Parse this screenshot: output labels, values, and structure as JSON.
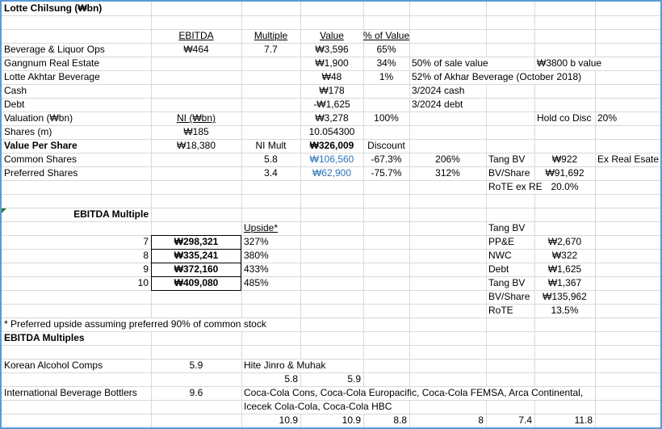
{
  "sheet": {
    "rows": [
      [
        "Lotte Chilsung  (₩bn)"
      ],
      [],
      [
        null,
        "EBITDA",
        "Multiple",
        "Value",
        "% of Value"
      ],
      [
        "Beverage & Liquor Ops",
        "₩464",
        "7.7",
        "₩3,596",
        "65%"
      ],
      [
        "Gangnum Real Estate",
        null,
        null,
        "₩1,900",
        "34%",
        "50% of sale value",
        null,
        "₩3800 b value"
      ],
      [
        "Lotte Akhtar Beverage",
        null,
        null,
        "₩48",
        "1%",
        "52% of Akhar Beverage (October 2018)"
      ],
      [
        "Cash",
        null,
        null,
        "₩178",
        null,
        "3/2024 cash"
      ],
      [
        "Debt",
        null,
        null,
        "-₩1,625",
        null,
        "3/2024 debt"
      ],
      [
        "Valuation (₩bn)",
        "NI (₩bn)",
        null,
        "₩3,278",
        "100%",
        null,
        null,
        "Hold co Disc",
        "20%"
      ],
      [
        "Shares (m)",
        "₩185",
        null,
        "10.054300"
      ],
      [
        "Value Per Share",
        "₩18,380",
        "NI Mult",
        "₩326,009",
        "Discount"
      ],
      [
        "Common Shares",
        null,
        "5.8",
        "₩106,560",
        "-67.3%",
        "206%",
        "Tang BV",
        "₩922",
        "Ex Real Esate"
      ],
      [
        "Preferred Shares",
        null,
        "3.4",
        "₩62,900",
        "-75.7%",
        "312%",
        "BV/Share",
        "₩91,692"
      ],
      [
        null,
        null,
        null,
        null,
        null,
        null,
        "RoTE ex RE",
        "20.0%"
      ],
      [],
      [
        "EBITDA Multiple"
      ],
      [
        null,
        null,
        "Upside*",
        null,
        null,
        null,
        "Tang BV"
      ],
      [
        "7",
        "₩298,321",
        "327%",
        null,
        null,
        null,
        "PP&E",
        "₩2,670"
      ],
      [
        "8",
        "₩335,241",
        "380%",
        null,
        null,
        null,
        "NWC",
        "₩322"
      ],
      [
        "9",
        "₩372,160",
        "433%",
        null,
        null,
        null,
        "Debt",
        "₩1,625"
      ],
      [
        "10",
        "₩409,080",
        "485%",
        null,
        null,
        null,
        "Tang BV",
        "₩1,367"
      ],
      [
        null,
        null,
        null,
        null,
        null,
        null,
        "BV/Share",
        "₩135,962"
      ],
      [
        null,
        null,
        null,
        null,
        null,
        null,
        "RoTE",
        "13.5%"
      ],
      [
        "* Preferred upside assuming preferred 90% of common stock"
      ],
      [
        "EBITDA Multiples"
      ],
      [],
      [
        "Korean Alcohol Comps",
        "5.9",
        "Hite Jinro & Muhak"
      ],
      [
        null,
        null,
        "5.8",
        "5.9"
      ],
      [
        "International Beverage Bottlers",
        "9.6",
        "Coca-Cola Cons, Coca-Cola Europacific, Coca-Cola FEMSA, Arca Continental,"
      ],
      [
        null,
        null,
        "Icecek Cola-Cola, Coca-Cola HBC"
      ],
      [
        null,
        null,
        "10.9",
        "10.9",
        "8.8",
        "8",
        "7.4",
        "11.8"
      ]
    ]
  }
}
